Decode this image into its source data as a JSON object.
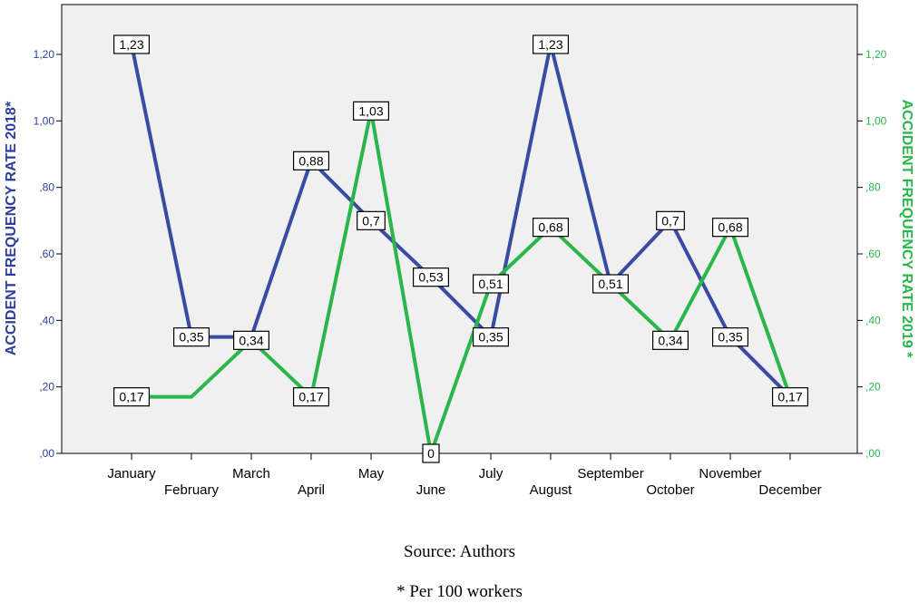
{
  "chart_data": {
    "type": "line",
    "categories": [
      "January",
      "February",
      "March",
      "April",
      "May",
      "June",
      "July",
      "August",
      "September",
      "October",
      "November",
      "December"
    ],
    "series": [
      {
        "axis": "left",
        "color": "#3a4ba3",
        "values": [
          1.23,
          0.35,
          0.35,
          0.88,
          0.7,
          0.53,
          0.35,
          1.23,
          0.51,
          0.7,
          0.35,
          0.17
        ],
        "labels": [
          "1,23",
          "0,35",
          "",
          "0,88",
          "0,7",
          "0,53",
          "0,35",
          "1,23",
          "0,51",
          "0,7",
          "0,35",
          "0,17"
        ]
      },
      {
        "axis": "right",
        "color": "#2ab64a",
        "values": [
          0.17,
          0.17,
          0.34,
          0.17,
          1.03,
          0.0,
          0.51,
          0.68,
          0.51,
          0.34,
          0.68,
          0.17
        ],
        "labels": [
          "0,17",
          "",
          "0,34",
          "0,17",
          "1,03",
          "0",
          "0,51",
          "0,68",
          "",
          "0,34",
          "0,68",
          ""
        ]
      }
    ],
    "y_left": {
      "label": "ACCIDENT FREQUENCY RATE 2018*",
      "ticks": [
        ",00",
        ",20",
        ",40",
        ",60",
        ",80",
        "1,00",
        "1,20"
      ],
      "tick_values": [
        0,
        0.2,
        0.4,
        0.6,
        0.8,
        1.0,
        1.2
      ],
      "ylim": [
        0,
        1.35
      ],
      "color": "#2c3e9e"
    },
    "y_right": {
      "label": "ACCIDENT FREQUENCY RATE 2019 *",
      "ticks": [
        ",00",
        ",20",
        ",40",
        ",60",
        ",80",
        "1,00",
        "1,20"
      ],
      "tick_values": [
        0,
        0.2,
        0.4,
        0.6,
        0.8,
        1.0,
        1.2
      ],
      "ylim": [
        0,
        1.35
      ],
      "color": "#2ab64a"
    },
    "grid": false,
    "legend": "none"
  },
  "captions": {
    "source": "Source: Authors",
    "note": "* Per 100 workers"
  }
}
